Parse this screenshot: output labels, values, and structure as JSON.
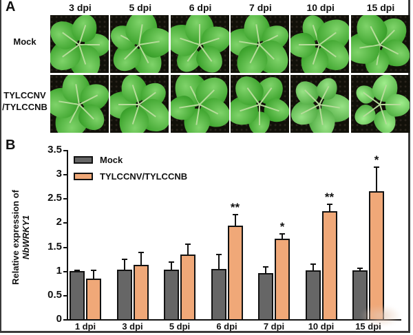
{
  "panel_a": {
    "letter": "A",
    "columns": [
      "3 dpi",
      "5 dpi",
      "6 dpi",
      "7 dpi",
      "10 dpi",
      "15 dpi"
    ],
    "rows": [
      {
        "label_lines": [
          "Mock"
        ]
      },
      {
        "label_lines": [
          "TYLCCNV",
          "/TYLCCNB"
        ]
      }
    ]
  },
  "panel_b": {
    "letter": "B"
  },
  "colors": {
    "mock": "#666666",
    "infected": "#f0a878"
  },
  "chart_data": {
    "type": "bar",
    "title": "",
    "xlabel": "",
    "ylabel": "Relative expression of NbWRKY1",
    "ylabel_prefix": "Relative expression of ",
    "ylabel_gene": "NbWRKY1",
    "ylim": [
      0,
      3.5
    ],
    "yticks": [
      "0",
      "0.5",
      "1",
      "1.5",
      "2",
      "2.5",
      "3",
      "3.5"
    ],
    "grid": false,
    "legend_position": "upper-left",
    "categories": [
      "1 dpi",
      "3 dpi",
      "5 dpi",
      "6 dpi",
      "7 dpi",
      "10 dpi",
      "15 dpi"
    ],
    "series": [
      {
        "name": "Mock",
        "color": "#666666",
        "values": [
          1.0,
          1.02,
          1.02,
          1.04,
          0.96,
          1.01,
          1.01
        ],
        "errors": [
          0.03,
          0.23,
          0.18,
          0.31,
          0.13,
          0.14,
          0.06
        ],
        "significance": [
          "",
          "",
          "",
          "",
          "",
          "",
          ""
        ]
      },
      {
        "name": "TYLCCNV/TYLCCNB",
        "color": "#f0a878",
        "values": [
          0.84,
          1.12,
          1.34,
          1.93,
          1.66,
          2.23,
          2.64
        ],
        "errors": [
          0.19,
          0.27,
          0.23,
          0.24,
          0.12,
          0.16,
          0.52
        ],
        "significance": [
          "",
          "",
          "",
          "**",
          "*",
          "**",
          "*"
        ]
      }
    ]
  }
}
